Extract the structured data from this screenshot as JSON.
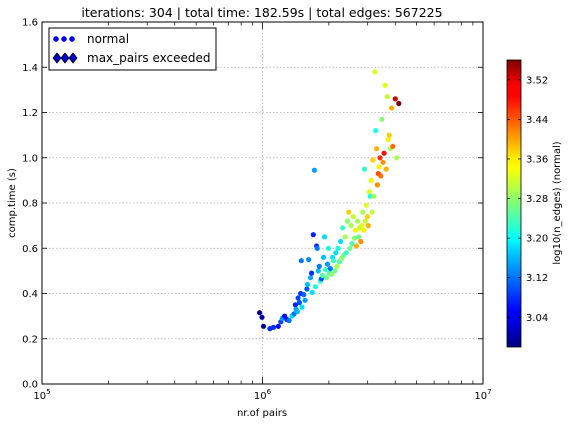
{
  "chart_data": {
    "type": "scatter",
    "title": "iterations: 304 | total time: 182.59s | total edges: 567225",
    "xlabel": "nr.of pairs",
    "ylabel": "comp.time (s)",
    "x_scale": "log",
    "xlim": [
      100000,
      10000000
    ],
    "ylim": [
      0,
      1.6
    ],
    "grid": true,
    "x_ticks": [
      {
        "value": 100000,
        "base": "10",
        "exp": "5"
      },
      {
        "value": 1000000,
        "base": "10",
        "exp": "6"
      },
      {
        "value": 10000000,
        "base": "10",
        "exp": "7"
      }
    ],
    "y_ticks": [
      {
        "value": 0.0,
        "label": "0.0"
      },
      {
        "value": 0.2,
        "label": "0.2"
      },
      {
        "value": 0.4,
        "label": "0.4"
      },
      {
        "value": 0.6,
        "label": "0.6"
      },
      {
        "value": 0.8,
        "label": "0.8"
      },
      {
        "value": 1.0,
        "label": "1.0"
      },
      {
        "value": 1.2,
        "label": "1.2"
      },
      {
        "value": 1.4,
        "label": "1.4"
      },
      {
        "value": 1.6,
        "label": "1.6"
      }
    ],
    "legend": {
      "position": "top-left",
      "entries": [
        {
          "label": "normal",
          "marker": "circle",
          "color": "#0000ff"
        },
        {
          "label": "max_pairs exceeded",
          "marker": "diamond",
          "color": "#0000cc"
        }
      ]
    },
    "colorbar": {
      "label": "log10(n_edges) (normal)",
      "range": [
        2.98,
        3.56
      ],
      "colormap": "jet",
      "ticks": [
        "3.04",
        "3.12",
        "3.20",
        "3.28",
        "3.36",
        "3.44",
        "3.52"
      ],
      "tick_values": [
        3.04,
        3.12,
        3.2,
        3.28,
        3.36,
        3.44,
        3.52
      ]
    },
    "series": [
      {
        "name": "normal",
        "points": [
          [
            970000,
            0.315,
            2.99
          ],
          [
            995000,
            0.295,
            3.0
          ],
          [
            1010000,
            0.255,
            2.99
          ],
          [
            1080000,
            0.245,
            3.08
          ],
          [
            1120000,
            0.25,
            3.08
          ],
          [
            1180000,
            0.255,
            3.05
          ],
          [
            1210000,
            0.275,
            3.09
          ],
          [
            1230000,
            0.29,
            3.14
          ],
          [
            1260000,
            0.3,
            3.06
          ],
          [
            1290000,
            0.285,
            3.06
          ],
          [
            1320000,
            0.28,
            3.12
          ],
          [
            1360000,
            0.3,
            3.18
          ],
          [
            1390000,
            0.31,
            3.12
          ],
          [
            1410000,
            0.35,
            3.07
          ],
          [
            1420000,
            0.33,
            3.14
          ],
          [
            1440000,
            0.32,
            3.16
          ],
          [
            1450000,
            0.38,
            3.09
          ],
          [
            1470000,
            0.36,
            3.1
          ],
          [
            1490000,
            0.4,
            3.08
          ],
          [
            1500000,
            0.545,
            3.12
          ],
          [
            1510000,
            0.34,
            3.18
          ],
          [
            1540000,
            0.395,
            3.11
          ],
          [
            1560000,
            0.37,
            3.14
          ],
          [
            1590000,
            0.42,
            3.1
          ],
          [
            1600000,
            0.44,
            3.16
          ],
          [
            1620000,
            0.55,
            3.13
          ],
          [
            1650000,
            0.47,
            3.15
          ],
          [
            1670000,
            0.49,
            3.08
          ],
          [
            1680000,
            0.405,
            3.18
          ],
          [
            1700000,
            0.66,
            3.07
          ],
          [
            1720000,
            0.945,
            3.14
          ],
          [
            1740000,
            0.43,
            3.2
          ],
          [
            1760000,
            0.61,
            3.08
          ],
          [
            1770000,
            0.6,
            3.12
          ],
          [
            1790000,
            0.5,
            3.16
          ],
          [
            1810000,
            0.52,
            3.12
          ],
          [
            1830000,
            0.455,
            3.22
          ],
          [
            1850000,
            0.465,
            3.1
          ],
          [
            1870000,
            0.48,
            3.24
          ],
          [
            1890000,
            0.56,
            3.16
          ],
          [
            1910000,
            0.65,
            3.18
          ],
          [
            1930000,
            0.505,
            3.22
          ],
          [
            1950000,
            0.47,
            3.26
          ],
          [
            1970000,
            0.53,
            3.14
          ],
          [
            1990000,
            0.6,
            3.2
          ],
          [
            2010000,
            0.49,
            3.24
          ],
          [
            2030000,
            0.51,
            3.12
          ],
          [
            2060000,
            0.485,
            3.28
          ],
          [
            2080000,
            0.56,
            3.18
          ],
          [
            2100000,
            0.545,
            3.22
          ],
          [
            2130000,
            0.5,
            3.26
          ],
          [
            2150000,
            0.58,
            3.18
          ],
          [
            2180000,
            0.52,
            3.3
          ],
          [
            2200000,
            0.6,
            3.2
          ],
          [
            2230000,
            0.54,
            3.24
          ],
          [
            2260000,
            0.63,
            3.18
          ],
          [
            2290000,
            0.555,
            3.28
          ],
          [
            2310000,
            0.69,
            3.22
          ],
          [
            2340000,
            0.57,
            3.26
          ],
          [
            2370000,
            0.65,
            3.3
          ],
          [
            2400000,
            0.58,
            3.22
          ],
          [
            2430000,
            0.72,
            3.28
          ],
          [
            2460000,
            0.76,
            3.38
          ],
          [
            2490000,
            0.6,
            3.26
          ],
          [
            2520000,
            0.7,
            3.3
          ],
          [
            2550000,
            0.62,
            3.24
          ],
          [
            2580000,
            0.74,
            3.32
          ],
          [
            2610000,
            0.645,
            3.28
          ],
          [
            2640000,
            0.68,
            3.36
          ],
          [
            2670000,
            0.61,
            3.4
          ],
          [
            2700000,
            0.72,
            3.3
          ],
          [
            2730000,
            0.65,
            3.26
          ],
          [
            2760000,
            0.69,
            3.32
          ],
          [
            2790000,
            0.63,
            3.42
          ],
          [
            2820000,
            0.7,
            3.34
          ],
          [
            2850000,
            0.76,
            3.3
          ],
          [
            2880000,
            0.68,
            3.36
          ],
          [
            2900000,
            0.95,
            3.22
          ],
          [
            2930000,
            0.72,
            3.32
          ],
          [
            2960000,
            0.79,
            3.34
          ],
          [
            2990000,
            0.74,
            3.38
          ],
          [
            3020000,
            0.7,
            3.4
          ],
          [
            3050000,
            0.85,
            3.34
          ],
          [
            3080000,
            0.83,
            3.2
          ],
          [
            3110000,
            0.9,
            3.36
          ],
          [
            3140000,
            0.76,
            3.32
          ],
          [
            3170000,
            0.99,
            3.38
          ],
          [
            3200000,
            0.83,
            3.3
          ],
          [
            3230000,
            1.38,
            3.34
          ],
          [
            3260000,
            1.12,
            3.2
          ],
          [
            3290000,
            1.04,
            3.4
          ],
          [
            3320000,
            0.88,
            3.42
          ],
          [
            3350000,
            0.93,
            3.46
          ],
          [
            3380000,
            0.96,
            3.36
          ],
          [
            3410000,
            1.0,
            3.48
          ],
          [
            3440000,
            0.92,
            3.44
          ],
          [
            3480000,
            1.17,
            3.28
          ],
          [
            3520000,
            0.98,
            3.42
          ],
          [
            3560000,
            1.02,
            3.5
          ],
          [
            3600000,
            1.32,
            3.34
          ],
          [
            3640000,
            0.95,
            3.4
          ],
          [
            3680000,
            1.27,
            3.32
          ],
          [
            3720000,
            1.08,
            3.36
          ],
          [
            3760000,
            1.1,
            3.38
          ],
          [
            3800000,
            1.04,
            3.3
          ],
          [
            3850000,
            1.22,
            3.4
          ],
          [
            3900000,
            1.05,
            3.44
          ],
          [
            4000000,
            1.26,
            3.52
          ],
          [
            4060000,
            1.0,
            3.3
          ],
          [
            4150000,
            1.24,
            3.56
          ]
        ]
      },
      {
        "name": "max_pairs exceeded",
        "points": []
      }
    ]
  }
}
